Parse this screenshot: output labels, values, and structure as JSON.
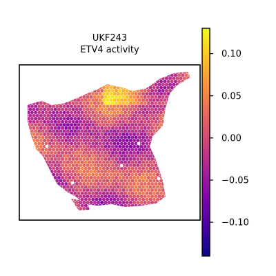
{
  "chart_data": {
    "type": "scatter",
    "subtype": "spatial-hexbin",
    "title_lines": [
      "UKF243",
      "ETV4 activity"
    ],
    "colormap": "plasma",
    "colorbar": {
      "min": -0.14,
      "max": 0.13,
      "ticks": [
        0.1,
        0.05,
        0.0,
        -0.05,
        -0.1
      ],
      "tick_labels": [
        "0.10",
        "0.05",
        "0.00",
        "−0.05",
        "−0.10"
      ]
    },
    "axes": {
      "grid": false,
      "axis_ticks": false,
      "frame": true
    },
    "value_range": [
      -0.14,
      0.13
    ]
  }
}
